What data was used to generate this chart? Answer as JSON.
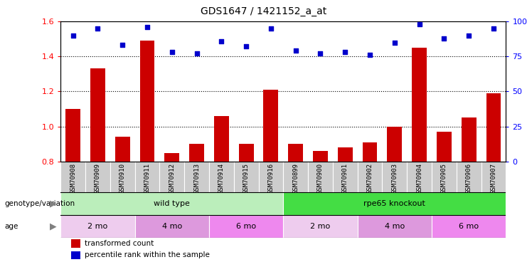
{
  "title": "GDS1647 / 1421152_a_at",
  "samples": [
    "GSM70908",
    "GSM70909",
    "GSM70910",
    "GSM70911",
    "GSM70912",
    "GSM70913",
    "GSM70914",
    "GSM70915",
    "GSM70916",
    "GSM70899",
    "GSM70900",
    "GSM70901",
    "GSM70902",
    "GSM70903",
    "GSM70904",
    "GSM70905",
    "GSM70906",
    "GSM70907"
  ],
  "transformed_count": [
    1.1,
    1.33,
    0.94,
    1.49,
    0.85,
    0.9,
    1.06,
    0.9,
    1.21,
    0.9,
    0.86,
    0.88,
    0.91,
    1.0,
    1.45,
    0.97,
    1.05,
    1.19
  ],
  "percentile_rank": [
    90,
    95,
    83,
    96,
    78,
    77,
    86,
    82,
    95,
    79,
    77,
    78,
    76,
    85,
    98,
    88,
    90,
    95
  ],
  "ylim_left": [
    0.8,
    1.6
  ],
  "ylim_right": [
    0,
    100
  ],
  "yticks_left": [
    0.8,
    1.0,
    1.2,
    1.4,
    1.6
  ],
  "yticks_right": [
    0,
    25,
    50,
    75,
    100
  ],
  "ytick_labels_right": [
    "0",
    "25",
    "50",
    "75",
    "100%"
  ],
  "bar_color": "#cc0000",
  "dot_color": "#0000cc",
  "bar_width": 0.6,
  "groups": [
    {
      "label": "wild type",
      "start": 0,
      "end": 9,
      "color": "#bbeebb"
    },
    {
      "label": "rpe65 knockout",
      "start": 9,
      "end": 18,
      "color": "#44dd44"
    }
  ],
  "age_groups": [
    {
      "label": "2 mo",
      "start": 0,
      "end": 3,
      "color": "#eeccee"
    },
    {
      "label": "4 mo",
      "start": 3,
      "end": 6,
      "color": "#dd99dd"
    },
    {
      "label": "6 mo",
      "start": 6,
      "end": 9,
      "color": "#ee88ee"
    },
    {
      "label": "2 mo",
      "start": 9,
      "end": 12,
      "color": "#eeccee"
    },
    {
      "label": "4 mo",
      "start": 12,
      "end": 15,
      "color": "#dd99dd"
    },
    {
      "label": "6 mo",
      "start": 15,
      "end": 18,
      "color": "#ee88ee"
    }
  ],
  "legend_bar_label": "transformed count",
  "legend_dot_label": "percentile rank within the sample",
  "genotype_label": "genotype/variation",
  "age_label": "age",
  "background_color": "#ffffff",
  "tick_bg_color": "#cccccc"
}
